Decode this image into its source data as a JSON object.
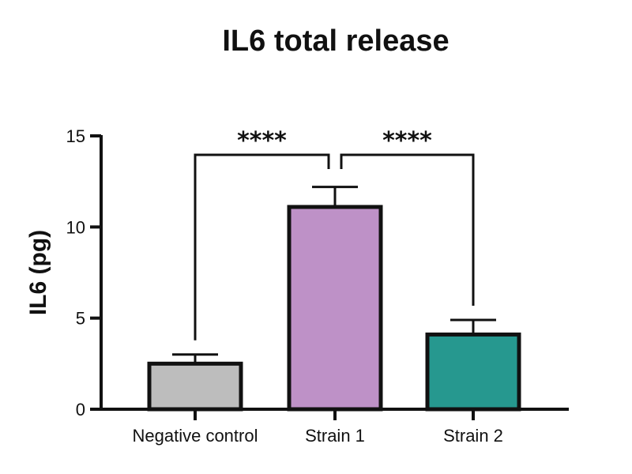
{
  "chart_data": {
    "type": "bar",
    "title": "IL6 total release",
    "ylabel": "IL6 (pg)",
    "xlabel": "",
    "ylim": [
      0,
      15
    ],
    "yticks": [
      0,
      5,
      10,
      15
    ],
    "categories": [
      "Negative control",
      "Strain 1",
      "Strain 2"
    ],
    "values": [
      2.5,
      11.1,
      4.1
    ],
    "errors": [
      0.5,
      1.1,
      0.8
    ],
    "colors": [
      "#bdbdbd",
      "#be91c7",
      "#26988f"
    ],
    "comparisons": [
      {
        "from": 0,
        "to": 1,
        "label": "****"
      },
      {
        "from": 1,
        "to": 2,
        "label": "****"
      }
    ],
    "grid": false
  }
}
